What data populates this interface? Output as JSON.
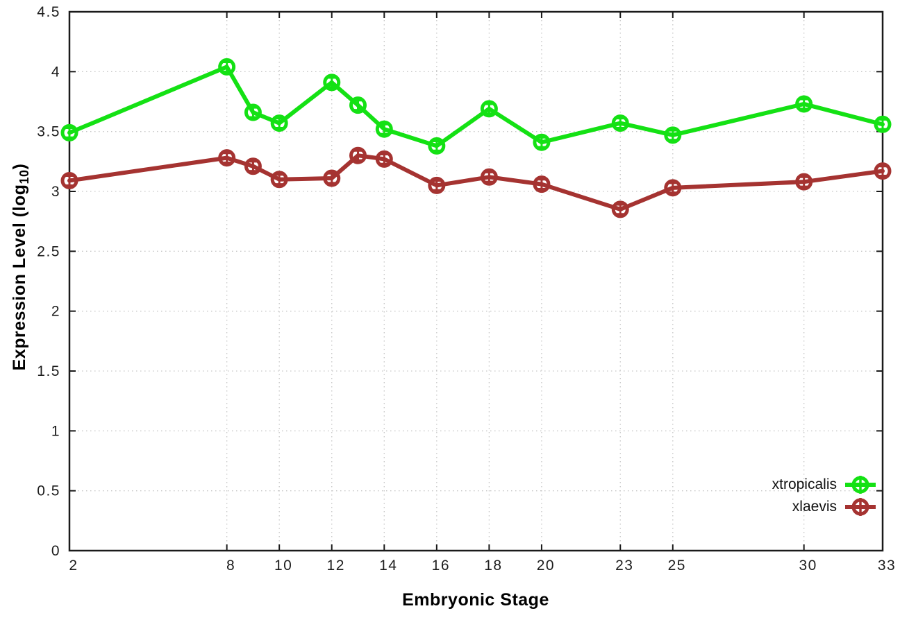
{
  "chart_data": {
    "type": "line",
    "title": "",
    "xlabel": "Embryonic Stage",
    "ylabel": "Expression Level (log10)",
    "ylabel_parts": {
      "prefix": "Expression Level (log",
      "subscript": "10",
      "suffix": ")"
    },
    "x": [
      2,
      8,
      9,
      10,
      12,
      13,
      14,
      16,
      18,
      20,
      23,
      25,
      30,
      33
    ],
    "xtick_labels": [
      "2",
      "8",
      "10",
      "12",
      "14",
      "16",
      "18",
      "20",
      "23",
      "25",
      "30",
      "33"
    ],
    "ytick_labels": [
      "0",
      "0.5",
      "1",
      "1.5",
      "2",
      "2.5",
      "3",
      "3.5",
      "4",
      "4.5"
    ],
    "xlim": [
      2,
      33
    ],
    "ylim": [
      0,
      4.5
    ],
    "grid": true,
    "legend_position": "bottom-right",
    "marker_style": "open-circle-with-error-bar",
    "error_bar": 0.04,
    "series": [
      {
        "name": "xtropicalis",
        "color": "#14e114",
        "values": [
          3.49,
          4.04,
          3.66,
          3.57,
          3.91,
          3.72,
          3.52,
          3.38,
          3.69,
          3.41,
          3.57,
          3.47,
          3.73,
          3.56
        ]
      },
      {
        "name": "xlaevis",
        "color": "#a53331",
        "values": [
          3.09,
          3.28,
          3.21,
          3.1,
          3.11,
          3.3,
          3.27,
          3.05,
          3.12,
          3.06,
          2.85,
          3.03,
          3.08,
          3.17
        ]
      }
    ]
  },
  "colors": {
    "background": "#ffffff",
    "grid": "#c6c6c6",
    "border": "#1a1a1a",
    "tick_text": "#1c1c1c"
  }
}
